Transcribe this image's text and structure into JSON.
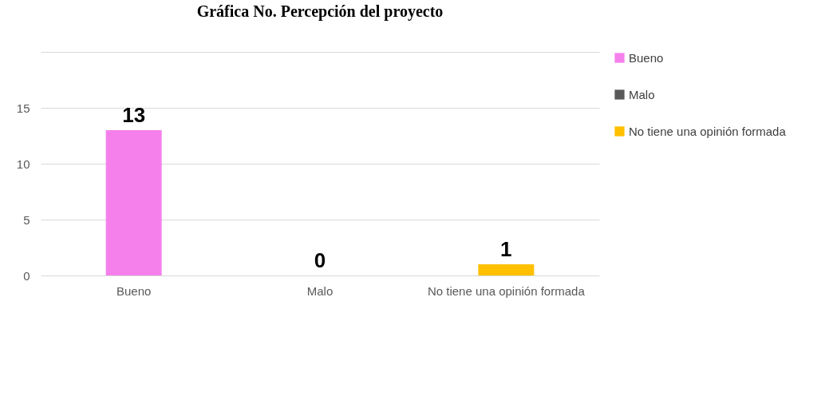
{
  "chart_data": {
    "type": "bar",
    "title": "Gráfica No. Percepción del proyecto",
    "categories": [
      "Bueno",
      "Malo",
      "No tiene una opinión formada"
    ],
    "series": [
      {
        "name": "Bueno",
        "color": "#f580ec",
        "values": [
          13,
          null,
          null
        ]
      },
      {
        "name": "Malo",
        "color": "#595959",
        "values": [
          null,
          0,
          null
        ]
      },
      {
        "name": "No tiene una opinión formada",
        "color": "#ffc000",
        "values": [
          null,
          null,
          1
        ]
      }
    ],
    "ylim": [
      0,
      20
    ],
    "yticks": [
      0,
      5,
      10,
      15,
      {
        "value": 20,
        "label": null
      }
    ],
    "grid": "y",
    "legend": "right",
    "data_labels": true
  }
}
